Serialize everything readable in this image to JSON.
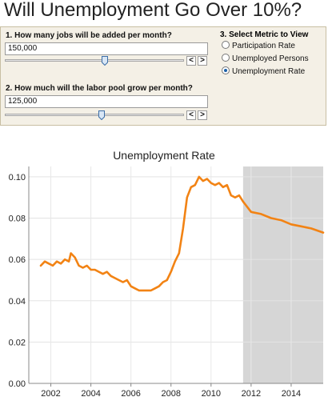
{
  "title": "Will Unemployment Go Over 10%?",
  "q1": {
    "label": "1. How many jobs will be added per month?",
    "value": "150,000",
    "slider_position": 0.56
  },
  "q2": {
    "label": "2. How much will the labor pool grow per month?",
    "value": "125,000",
    "slider_position": 0.54
  },
  "stepper": {
    "prev": "<",
    "next": ">"
  },
  "metric": {
    "title": "3. Select Metric to View",
    "options": [
      "Participation Rate",
      "Unemployed Persons",
      "Unemployment Rate"
    ],
    "selected": "Unemployment Rate"
  },
  "colors": {
    "line": "#f28314",
    "forecast_shade": "#d6d6d6",
    "panel": "#f4f0e6"
  },
  "chart_data": {
    "type": "line",
    "title": "Unemployment Rate",
    "xlim": [
      2000.9,
      2015.6
    ],
    "ylim": [
      0,
      0.105
    ],
    "yticks": [
      0.0,
      0.02,
      0.04,
      0.06,
      0.08,
      0.1
    ],
    "ytick_labels": [
      "0.00",
      "0.02",
      "0.04",
      "0.06",
      "0.08",
      "0.10"
    ],
    "xticks": [
      2002,
      2004,
      2006,
      2008,
      2010,
      2012,
      2014
    ],
    "forecast_start": 2011.6,
    "grid": true,
    "series": [
      {
        "x": [
          2001.5,
          2001.7,
          2001.9,
          2002.1,
          2002.3,
          2002.5,
          2002.7,
          2002.9,
          2003.0,
          2003.2,
          2003.4,
          2003.6,
          2003.8,
          2004.0,
          2004.2,
          2004.4,
          2004.6,
          2004.8,
          2005.0,
          2005.2,
          2005.4,
          2005.6,
          2005.8,
          2006.0,
          2006.2,
          2006.4,
          2006.6,
          2006.8,
          2007.0,
          2007.2,
          2007.4,
          2007.6,
          2007.8,
          2008.0,
          2008.2,
          2008.4,
          2008.6,
          2008.8,
          2009.0,
          2009.2,
          2009.4,
          2009.6,
          2009.8,
          2010.0,
          2010.2,
          2010.4,
          2010.6,
          2010.8,
          2011.0,
          2011.2,
          2011.4,
          2011.6,
          2012.0,
          2012.5,
          2013.0,
          2013.5,
          2014.0,
          2014.5,
          2015.0,
          2015.6
        ],
        "y": [
          0.057,
          0.059,
          0.058,
          0.057,
          0.059,
          0.058,
          0.06,
          0.059,
          0.063,
          0.061,
          0.057,
          0.056,
          0.057,
          0.055,
          0.055,
          0.054,
          0.053,
          0.054,
          0.052,
          0.051,
          0.05,
          0.049,
          0.05,
          0.047,
          0.046,
          0.045,
          0.045,
          0.045,
          0.045,
          0.046,
          0.047,
          0.049,
          0.05,
          0.054,
          0.059,
          0.063,
          0.075,
          0.09,
          0.095,
          0.096,
          0.1,
          0.098,
          0.099,
          0.097,
          0.096,
          0.097,
          0.095,
          0.096,
          0.091,
          0.09,
          0.091,
          0.088,
          0.083,
          0.082,
          0.08,
          0.079,
          0.077,
          0.076,
          0.075,
          0.073
        ]
      }
    ]
  }
}
